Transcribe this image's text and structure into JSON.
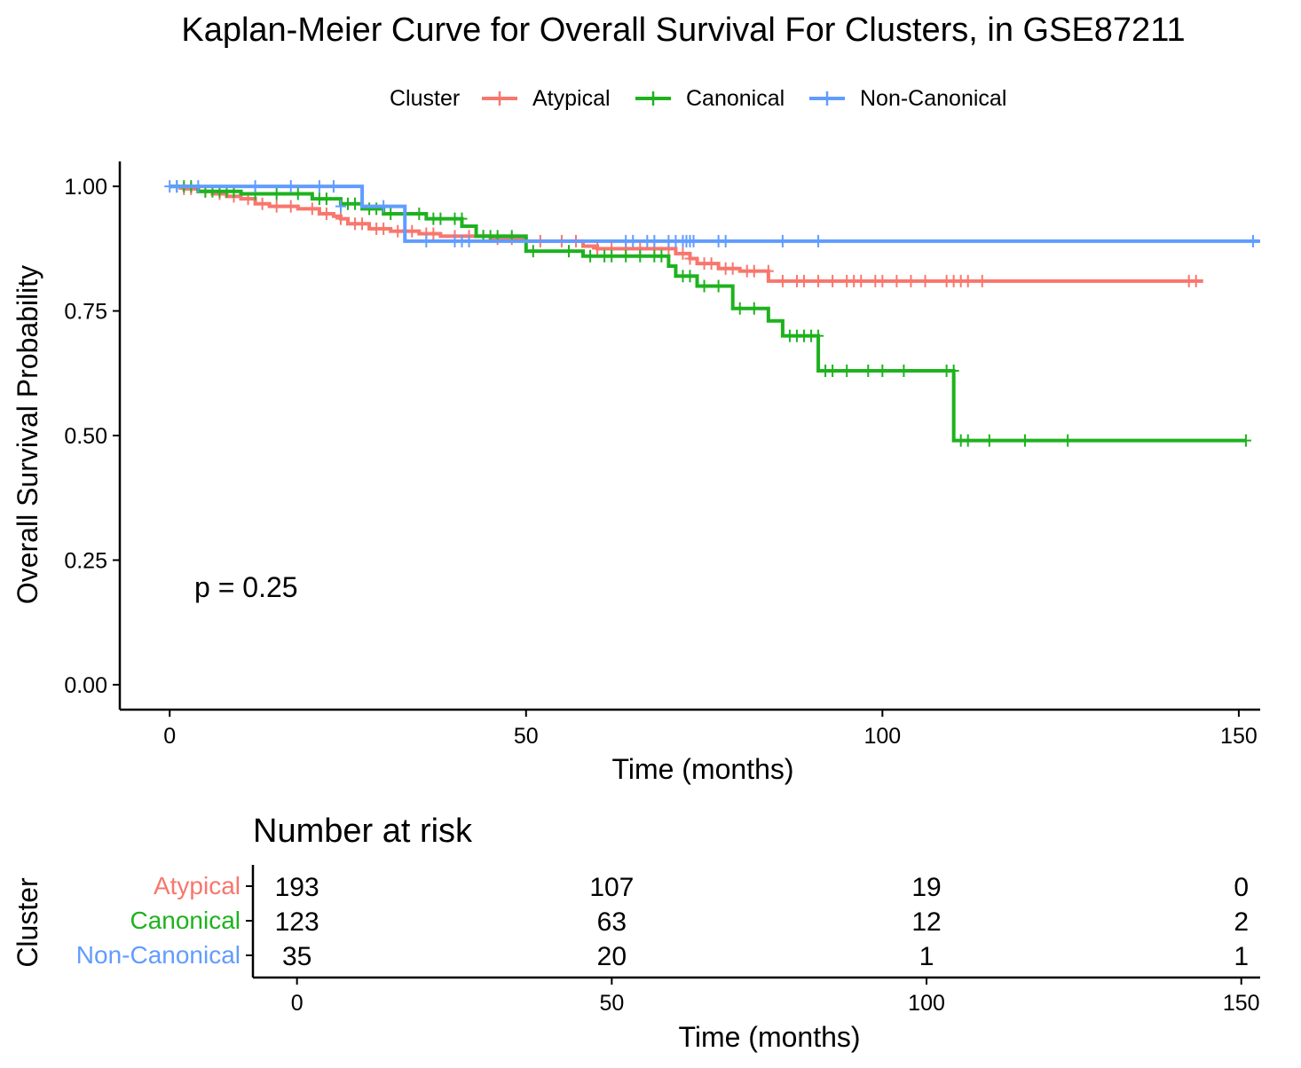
{
  "chart_data": [
    {
      "type": "line",
      "subtype": "kaplan-meier",
      "title": "Kaplan-Meier Curve for Overall Survival For Clusters, in GSE87211",
      "xlabel": "Time (months)",
      "ylabel": "Overall Survival Probability",
      "xlim": [
        -7,
        153
      ],
      "ylim": [
        -0.05,
        1.05
      ],
      "xticks": [
        "0",
        "50",
        "100",
        "150"
      ],
      "yticks": [
        "0.00",
        "0.25",
        "0.50",
        "0.75",
        "1.00"
      ],
      "grid": false,
      "legend": {
        "title": "Cluster",
        "position": "top"
      },
      "annotation": "p = 0.25",
      "series": [
        {
          "name": "Atypical",
          "color": "#F8766D",
          "steps": [
            [
              0,
              1.0
            ],
            [
              2,
              0.995
            ],
            [
              4,
              0.99
            ],
            [
              6,
              0.985
            ],
            [
              8,
              0.98
            ],
            [
              10,
              0.975
            ],
            [
              12,
              0.965
            ],
            [
              14,
              0.96
            ],
            [
              18,
              0.955
            ],
            [
              21,
              0.945
            ],
            [
              23,
              0.94
            ],
            [
              24,
              0.935
            ],
            [
              25,
              0.925
            ],
            [
              28,
              0.915
            ],
            [
              31,
              0.91
            ],
            [
              35,
              0.905
            ],
            [
              38,
              0.9
            ],
            [
              45,
              0.895
            ],
            [
              50,
              0.89
            ],
            [
              58,
              0.88
            ],
            [
              60,
              0.875
            ],
            [
              71,
              0.865
            ],
            [
              73,
              0.855
            ],
            [
              74,
              0.845
            ],
            [
              77,
              0.835
            ],
            [
              80,
              0.83
            ],
            [
              84,
              0.81
            ],
            [
              145,
              0.81
            ]
          ],
          "censors": [
            [
              2,
              0.995
            ],
            [
              3,
              0.995
            ],
            [
              5,
              0.99
            ],
            [
              7,
              0.985
            ],
            [
              9,
              0.98
            ],
            [
              11,
              0.975
            ],
            [
              13,
              0.965
            ],
            [
              15,
              0.96
            ],
            [
              17,
              0.96
            ],
            [
              20,
              0.955
            ],
            [
              22,
              0.945
            ],
            [
              24,
              0.935
            ],
            [
              26,
              0.925
            ],
            [
              27,
              0.925
            ],
            [
              29,
              0.915
            ],
            [
              30,
              0.915
            ],
            [
              32,
              0.91
            ],
            [
              34,
              0.91
            ],
            [
              36,
              0.905
            ],
            [
              37,
              0.905
            ],
            [
              40,
              0.9
            ],
            [
              42,
              0.9
            ],
            [
              44,
              0.9
            ],
            [
              46,
              0.895
            ],
            [
              48,
              0.895
            ],
            [
              52,
              0.89
            ],
            [
              55,
              0.89
            ],
            [
              57,
              0.89
            ],
            [
              60,
              0.875
            ],
            [
              62,
              0.875
            ],
            [
              64,
              0.875
            ],
            [
              66,
              0.875
            ],
            [
              68,
              0.875
            ],
            [
              70,
              0.875
            ],
            [
              72,
              0.865
            ],
            [
              73,
              0.855
            ],
            [
              75,
              0.845
            ],
            [
              76,
              0.845
            ],
            [
              78,
              0.835
            ],
            [
              79,
              0.835
            ],
            [
              81,
              0.83
            ],
            [
              82,
              0.83
            ],
            [
              84,
              0.83
            ],
            [
              86,
              0.81
            ],
            [
              88,
              0.81
            ],
            [
              89,
              0.81
            ],
            [
              91,
              0.81
            ],
            [
              93,
              0.81
            ],
            [
              95,
              0.81
            ],
            [
              96,
              0.81
            ],
            [
              97,
              0.81
            ],
            [
              99,
              0.81
            ],
            [
              100,
              0.81
            ],
            [
              102,
              0.81
            ],
            [
              104,
              0.81
            ],
            [
              106,
              0.81
            ],
            [
              109,
              0.81
            ],
            [
              110,
              0.81
            ],
            [
              111,
              0.81
            ],
            [
              112,
              0.81
            ],
            [
              114,
              0.81
            ],
            [
              143,
              0.81
            ],
            [
              144,
              0.81
            ]
          ]
        },
        {
          "name": "Canonical",
          "color": "#1EB21E",
          "steps": [
            [
              0,
              1.0
            ],
            [
              4,
              0.99
            ],
            [
              10,
              0.985
            ],
            [
              20,
              0.975
            ],
            [
              24,
              0.965
            ],
            [
              27,
              0.955
            ],
            [
              30,
              0.945
            ],
            [
              36,
              0.935
            ],
            [
              41,
              0.92
            ],
            [
              43,
              0.9
            ],
            [
              50,
              0.87
            ],
            [
              58,
              0.86
            ],
            [
              70,
              0.84
            ],
            [
              71,
              0.82
            ],
            [
              74,
              0.8
            ],
            [
              79,
              0.755
            ],
            [
              84,
              0.73
            ],
            [
              86,
              0.7
            ],
            [
              91,
              0.63
            ],
            [
              110,
              0.49
            ],
            [
              151,
              0.49
            ]
          ],
          "censors": [
            [
              1,
              1.0
            ],
            [
              2,
              1.0
            ],
            [
              3,
              1.0
            ],
            [
              5,
              0.99
            ],
            [
              6,
              0.99
            ],
            [
              7,
              0.99
            ],
            [
              8,
              0.99
            ],
            [
              9,
              0.99
            ],
            [
              12,
              0.985
            ],
            [
              15,
              0.985
            ],
            [
              18,
              0.985
            ],
            [
              21,
              0.975
            ],
            [
              22,
              0.975
            ],
            [
              25,
              0.965
            ],
            [
              26,
              0.965
            ],
            [
              28,
              0.955
            ],
            [
              29,
              0.955
            ],
            [
              31,
              0.945
            ],
            [
              33,
              0.945
            ],
            [
              35,
              0.945
            ],
            [
              37,
              0.935
            ],
            [
              38,
              0.935
            ],
            [
              40,
              0.935
            ],
            [
              41,
              0.935
            ],
            [
              44,
              0.9
            ],
            [
              45,
              0.9
            ],
            [
              46,
              0.9
            ],
            [
              48,
              0.9
            ],
            [
              51,
              0.87
            ],
            [
              56,
              0.87
            ],
            [
              59,
              0.86
            ],
            [
              61,
              0.86
            ],
            [
              62,
              0.86
            ],
            [
              64,
              0.86
            ],
            [
              66,
              0.86
            ],
            [
              68,
              0.86
            ],
            [
              69,
              0.86
            ],
            [
              72,
              0.82
            ],
            [
              73,
              0.82
            ],
            [
              75,
              0.8
            ],
            [
              77,
              0.8
            ],
            [
              80,
              0.755
            ],
            [
              82,
              0.755
            ],
            [
              87,
              0.7
            ],
            [
              88,
              0.7
            ],
            [
              89,
              0.7
            ],
            [
              90,
              0.7
            ],
            [
              91,
              0.7
            ],
            [
              92,
              0.63
            ],
            [
              93,
              0.63
            ],
            [
              95,
              0.63
            ],
            [
              98,
              0.63
            ],
            [
              100,
              0.63
            ],
            [
              103,
              0.63
            ],
            [
              109,
              0.63
            ],
            [
              110,
              0.63
            ],
            [
              111,
              0.49
            ],
            [
              112,
              0.49
            ],
            [
              115,
              0.49
            ],
            [
              120,
              0.49
            ],
            [
              126,
              0.49
            ],
            [
              151,
              0.49
            ]
          ]
        },
        {
          "name": "Non-Canonical",
          "color": "#619CFF",
          "steps": [
            [
              0,
              1.0
            ],
            [
              27,
              0.96
            ],
            [
              33,
              0.89
            ],
            [
              153,
              0.89
            ]
          ],
          "censors": [
            [
              0,
              1.0
            ],
            [
              1,
              1.0
            ],
            [
              4,
              1.0
            ],
            [
              12,
              1.0
            ],
            [
              17,
              1.0
            ],
            [
              21,
              1.0
            ],
            [
              23,
              1.0
            ],
            [
              24,
              0.96
            ],
            [
              30,
              0.96
            ],
            [
              36,
              0.89
            ],
            [
              40,
              0.89
            ],
            [
              41,
              0.89
            ],
            [
              42,
              0.89
            ],
            [
              64,
              0.89
            ],
            [
              65,
              0.89
            ],
            [
              67,
              0.89
            ],
            [
              68,
              0.89
            ],
            [
              70,
              0.89
            ],
            [
              71,
              0.89
            ],
            [
              72,
              0.89
            ],
            [
              72.5,
              0.89
            ],
            [
              73,
              0.89
            ],
            [
              73.5,
              0.89
            ],
            [
              77,
              0.89
            ],
            [
              78,
              0.89
            ],
            [
              86,
              0.89
            ],
            [
              91,
              0.89
            ],
            [
              152,
              0.89
            ]
          ]
        }
      ]
    },
    {
      "type": "table",
      "title": "Number at risk",
      "xlabel": "Time (months)",
      "ylabel": "Cluster",
      "xlim": [
        -7,
        153
      ],
      "xticks": [
        "0",
        "50",
        "100",
        "150"
      ],
      "rows": [
        {
          "name": "Atypical",
          "color": "#F8766D",
          "values": [
            "193",
            "107",
            "19",
            "0"
          ]
        },
        {
          "name": "Canonical",
          "color": "#1EB21E",
          "values": [
            "123",
            "63",
            "12",
            "2"
          ]
        },
        {
          "name": "Non-Canonical",
          "color": "#619CFF",
          "values": [
            "35",
            "20",
            "1",
            "1"
          ]
        }
      ]
    }
  ]
}
